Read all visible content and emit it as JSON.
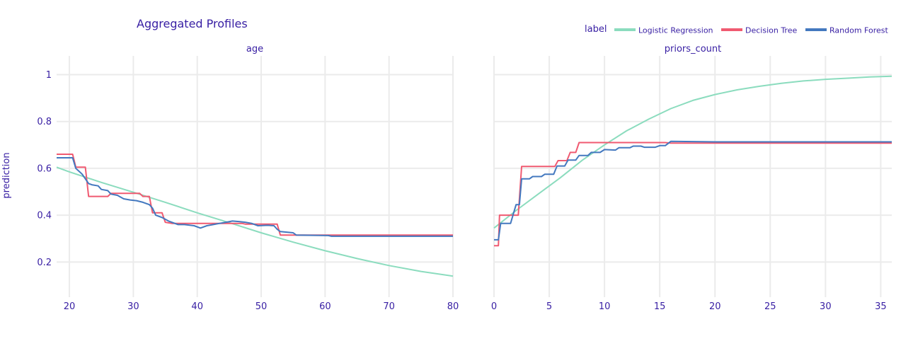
{
  "chart_data": {
    "type": "line",
    "title": "Aggregated Profiles",
    "ylabel": "prediction",
    "legend": {
      "title": "label",
      "placement": "top-right",
      "entries": [
        "Logistic Regression",
        "Decision Tree",
        "Random Forest"
      ]
    },
    "grid": true,
    "ylim": [
      0.05,
      1.08
    ],
    "yticks": [
      0.2,
      0.4,
      0.6,
      0.8,
      1
    ],
    "ytick_labels": [
      "0.2",
      "0.4",
      "0.6",
      "0.8",
      "1"
    ],
    "colors": {
      "Logistic Regression": "#8bdcbe",
      "Decision Tree": "#f05a71",
      "Random Forest": "#4378bf"
    },
    "panels": [
      {
        "subtitle": "age",
        "xlim": [
          18,
          80
        ],
        "xticks": [
          20,
          30,
          40,
          50,
          60,
          70,
          80
        ],
        "xtick_labels": [
          "20",
          "30",
          "40",
          "50",
          "60",
          "70",
          "80"
        ],
        "series": [
          {
            "name": "Logistic Regression",
            "x": [
              18,
              20,
              25,
              30,
              35,
              40,
              45,
              50,
              55,
              60,
              65,
              70,
              75,
              80
            ],
            "y": [
              0.605,
              0.585,
              0.54,
              0.498,
              0.455,
              0.41,
              0.368,
              0.325,
              0.285,
              0.248,
              0.215,
              0.185,
              0.16,
              0.14
            ]
          },
          {
            "name": "Decision Tree",
            "x": [
              18,
              20.5,
              21,
              22,
              22.5,
              23,
              26,
              26.5,
              31,
              31.5,
              32.5,
              33,
              34.5,
              35,
              36,
              47,
              47.5,
              52.5,
              53,
              80
            ],
            "y": [
              0.66,
              0.66,
              0.605,
              0.605,
              0.605,
              0.48,
              0.48,
              0.493,
              0.493,
              0.48,
              0.48,
              0.41,
              0.41,
              0.37,
              0.365,
              0.365,
              0.362,
              0.362,
              0.315,
              0.315
            ]
          },
          {
            "name": "Random Forest",
            "x": [
              18,
              20.5,
              21,
              22,
              23,
              23.5,
              24.5,
              25,
              26,
              26.5,
              27.5,
              28.5,
              29.5,
              30.5,
              31.5,
              32.5,
              33,
              33.5,
              34.5,
              35.5,
              36,
              37,
              38,
              39.5,
              40.5,
              41.5,
              42.5,
              43.5,
              44.5,
              45.5,
              46.5,
              47.5,
              48.5,
              49.5,
              51,
              52,
              52.5,
              53,
              55,
              55.5,
              60.5,
              61,
              80
            ],
            "y": [
              0.645,
              0.645,
              0.6,
              0.575,
              0.535,
              0.53,
              0.525,
              0.51,
              0.505,
              0.49,
              0.485,
              0.47,
              0.465,
              0.462,
              0.455,
              0.445,
              0.43,
              0.4,
              0.39,
              0.375,
              0.37,
              0.36,
              0.36,
              0.355,
              0.345,
              0.355,
              0.36,
              0.365,
              0.37,
              0.375,
              0.373,
              0.37,
              0.365,
              0.355,
              0.357,
              0.355,
              0.34,
              0.33,
              0.325,
              0.315,
              0.313,
              0.31,
              0.31
            ]
          }
        ]
      },
      {
        "subtitle": "priors_count",
        "xlim": [
          0,
          36
        ],
        "xticks": [
          0,
          5,
          10,
          15,
          20,
          25,
          30,
          35
        ],
        "xtick_labels": [
          "0",
          "5",
          "10",
          "15",
          "20",
          "25",
          "30",
          "35"
        ],
        "series": [
          {
            "name": "Logistic Regression",
            "x": [
              0,
              2,
              4,
              6,
              8,
              10,
              12,
              14,
              16,
              18,
              20,
              22,
              24,
              26,
              28,
              30,
              32,
              34,
              36
            ],
            "y": [
              0.345,
              0.42,
              0.49,
              0.56,
              0.635,
              0.7,
              0.76,
              0.81,
              0.855,
              0.89,
              0.915,
              0.935,
              0.95,
              0.963,
              0.973,
              0.98,
              0.985,
              0.99,
              0.993
            ]
          },
          {
            "name": "Decision Tree",
            "x": [
              0,
              0.4,
              0.5,
              1.5,
              2.2,
              2.5,
              5.5,
              5.8,
              6.6,
              6.9,
              7.4,
              7.7,
              15.5,
              16,
              36
            ],
            "y": [
              0.27,
              0.27,
              0.4,
              0.4,
              0.4,
              0.608,
              0.608,
              0.633,
              0.633,
              0.668,
              0.668,
              0.71,
              0.71,
              0.708,
              0.708
            ]
          },
          {
            "name": "Random Forest",
            "x": [
              0,
              0.4,
              0.6,
              1.5,
              2.0,
              2.3,
              2.5,
              3.2,
              3.5,
              4.3,
              4.6,
              5.4,
              5.7,
              6.4,
              6.7,
              7.4,
              7.7,
              8.5,
              8.8,
              9.6,
              10.0,
              11.0,
              11.3,
              12.3,
              12.6,
              13.3,
              13.6,
              14.6,
              15.0,
              15.5,
              16,
              20,
              36
            ],
            "y": [
              0.295,
              0.295,
              0.365,
              0.365,
              0.445,
              0.445,
              0.555,
              0.555,
              0.565,
              0.565,
              0.575,
              0.575,
              0.61,
              0.61,
              0.635,
              0.635,
              0.655,
              0.655,
              0.668,
              0.668,
              0.68,
              0.678,
              0.688,
              0.688,
              0.695,
              0.695,
              0.69,
              0.69,
              0.697,
              0.697,
              0.715,
              0.713,
              0.713
            ]
          }
        ]
      }
    ]
  }
}
